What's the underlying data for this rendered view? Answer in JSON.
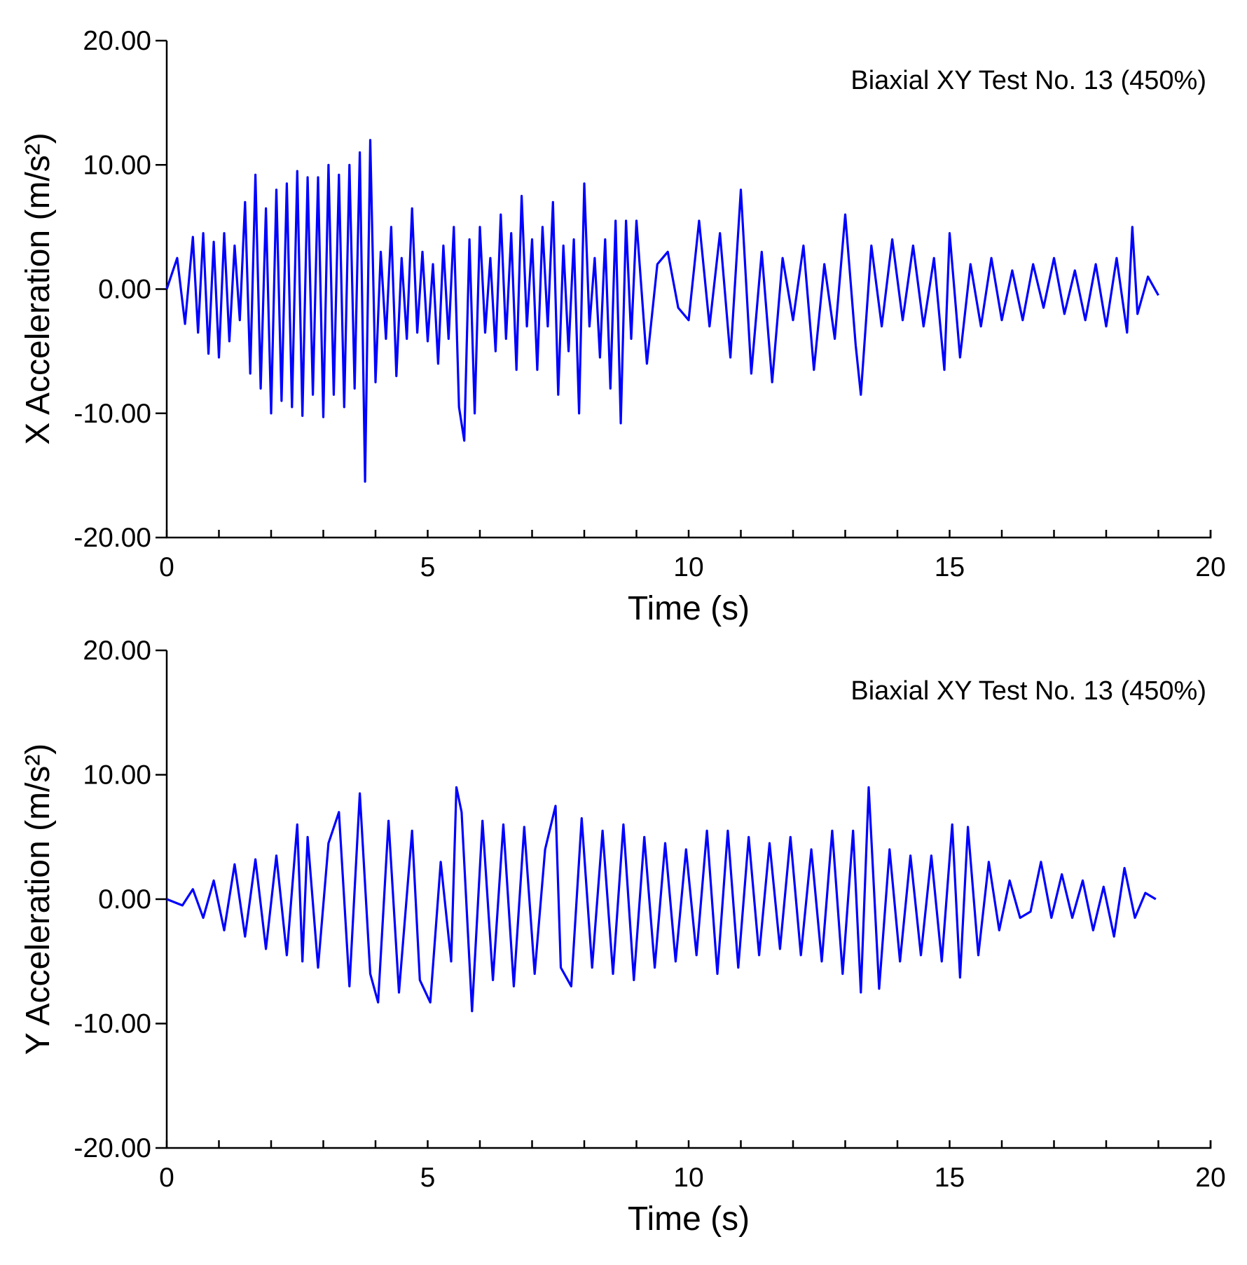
{
  "chart_data": [
    {
      "type": "line",
      "title": "",
      "annotation": "Biaxial XY Test No. 13 (450%)",
      "xlabel": "Time  (s)",
      "ylabel": "X Acceleration (m/s²)",
      "xlim": [
        0,
        20
      ],
      "ylim": [
        -20,
        20
      ],
      "x_ticks": [
        "0",
        "5",
        "10",
        "15",
        "20"
      ],
      "y_ticks": [
        "-20.00",
        "-10.00",
        "0.00",
        "10.00",
        "20.00"
      ],
      "grid": false,
      "legend": "none",
      "color": "#0000ff",
      "series": [
        {
          "x": [
            0,
            0.2,
            0.35,
            0.5,
            0.6,
            0.7,
            0.8,
            0.9,
            1.0,
            1.1,
            1.2,
            1.3,
            1.4,
            1.5,
            1.6,
            1.7,
            1.8,
            1.9,
            2.0,
            2.1,
            2.2,
            2.3,
            2.4,
            2.5,
            2.6,
            2.7,
            2.8,
            2.9,
            3.0,
            3.1,
            3.2,
            3.3,
            3.4,
            3.5,
            3.6,
            3.7,
            3.8,
            3.9,
            4.0,
            4.1,
            4.2,
            4.3,
            4.4,
            4.5,
            4.6,
            4.7,
            4.8,
            4.9,
            5.0,
            5.1,
            5.2,
            5.3,
            5.4,
            5.5,
            5.6,
            5.7,
            5.8,
            5.9,
            6.0,
            6.1,
            6.2,
            6.3,
            6.4,
            6.5,
            6.6,
            6.7,
            6.8,
            6.9,
            7.0,
            7.1,
            7.2,
            7.3,
            7.4,
            7.5,
            7.6,
            7.7,
            7.8,
            7.9,
            8.0,
            8.1,
            8.2,
            8.3,
            8.4,
            8.5,
            8.6,
            8.7,
            8.8,
            8.9,
            9.0,
            9.2,
            9.4,
            9.6,
            9.8,
            10.0,
            10.2,
            10.4,
            10.6,
            10.8,
            11.0,
            11.2,
            11.4,
            11.6,
            11.8,
            12.0,
            12.2,
            12.4,
            12.6,
            12.8,
            13.0,
            13.2,
            13.3,
            13.5,
            13.7,
            13.9,
            14.1,
            14.3,
            14.5,
            14.7,
            14.9,
            15.0,
            15.2,
            15.4,
            15.6,
            15.8,
            16.0,
            16.2,
            16.4,
            16.6,
            16.8,
            17.0,
            17.2,
            17.4,
            17.6,
            17.8,
            18.0,
            18.2,
            18.4,
            18.5,
            18.6,
            18.8,
            19.0
          ],
          "y": [
            0,
            2.5,
            -2.8,
            4.2,
            -3.5,
            4.5,
            -5.2,
            3.8,
            -5.5,
            4.5,
            -4.2,
            3.5,
            -2.5,
            7.0,
            -6.8,
            9.2,
            -8.0,
            6.5,
            -10.0,
            8.0,
            -9.0,
            8.5,
            -9.5,
            9.5,
            -10.2,
            9.0,
            -8.5,
            9.0,
            -10.3,
            10.0,
            -8.5,
            9.2,
            -9.5,
            10.0,
            -8.0,
            11.0,
            -15.5,
            12.0,
            -7.5,
            3.0,
            -4.0,
            5.0,
            -7.0,
            2.5,
            -4.0,
            6.5,
            -3.5,
            3.0,
            -4.2,
            2.0,
            -6.0,
            3.5,
            -4.0,
            5.0,
            -9.5,
            -12.2,
            4.0,
            -10.0,
            5.0,
            -3.5,
            2.5,
            -5.0,
            6.0,
            -4.0,
            4.5,
            -6.5,
            7.5,
            -3.0,
            4.0,
            -6.5,
            5.0,
            -3.0,
            7.0,
            -8.5,
            3.5,
            -5.0,
            4.0,
            -10.0,
            8.5,
            -3.0,
            2.5,
            -5.5,
            4.0,
            -8.0,
            5.5,
            -10.8,
            5.5,
            -4.0,
            5.5,
            -6.0,
            2.0,
            3.0,
            -1.5,
            -2.5,
            5.5,
            -3.0,
            4.5,
            -5.5,
            8.0,
            -6.8,
            3.0,
            -7.5,
            2.5,
            -2.5,
            3.5,
            -6.5,
            2.0,
            -4.0,
            6.0,
            -4.5,
            -8.5,
            3.5,
            -3.0,
            4.0,
            -2.5,
            3.5,
            -3.0,
            2.5,
            -6.5,
            4.5,
            -5.5,
            2.0,
            -3.0,
            2.5,
            -2.5,
            1.5,
            -2.5,
            2.0,
            -1.5,
            2.5,
            -2.0,
            1.5,
            -2.5,
            2.0,
            -3.0,
            2.5,
            -3.5,
            5.0,
            -2.0,
            1.0,
            -0.5
          ]
        }
      ]
    },
    {
      "type": "line",
      "title": "",
      "annotation": "Biaxial XY Test No. 13 (450%)",
      "xlabel": "Time  (s)",
      "ylabel": "Y Acceleration (m/s²)",
      "xlim": [
        0,
        20
      ],
      "ylim": [
        -20,
        20
      ],
      "x_ticks": [
        "0",
        "5",
        "10",
        "15",
        "20"
      ],
      "y_ticks": [
        "-20.00",
        "-10.00",
        "0.00",
        "10.00",
        "20.00"
      ],
      "grid": false,
      "legend": "none",
      "color": "#0000ff",
      "series": [
        {
          "x": [
            0,
            0.3,
            0.5,
            0.7,
            0.9,
            1.1,
            1.3,
            1.5,
            1.7,
            1.9,
            2.1,
            2.3,
            2.5,
            2.6,
            2.7,
            2.9,
            3.1,
            3.3,
            3.5,
            3.7,
            3.9,
            4.05,
            4.25,
            4.45,
            4.7,
            4.85,
            5.05,
            5.25,
            5.45,
            5.55,
            5.65,
            5.85,
            6.05,
            6.25,
            6.45,
            6.65,
            6.85,
            7.05,
            7.25,
            7.45,
            7.55,
            7.75,
            7.95,
            8.15,
            8.35,
            8.55,
            8.75,
            8.95,
            9.15,
            9.35,
            9.55,
            9.75,
            9.95,
            10.15,
            10.35,
            10.55,
            10.75,
            10.95,
            11.15,
            11.35,
            11.55,
            11.75,
            11.95,
            12.15,
            12.35,
            12.55,
            12.75,
            12.95,
            13.15,
            13.3,
            13.45,
            13.65,
            13.85,
            14.05,
            14.25,
            14.45,
            14.65,
            14.85,
            15.05,
            15.2,
            15.35,
            15.55,
            15.75,
            15.95,
            16.15,
            16.35,
            16.55,
            16.75,
            16.95,
            17.15,
            17.35,
            17.55,
            17.75,
            17.95,
            18.15,
            18.35,
            18.55,
            18.75,
            18.95
          ],
          "y": [
            0,
            -0.5,
            0.8,
            -1.5,
            1.5,
            -2.5,
            2.8,
            -3.0,
            3.2,
            -4.0,
            3.5,
            -4.5,
            6.0,
            -5.0,
            5.0,
            -5.5,
            4.5,
            7.0,
            -7.0,
            8.5,
            -6.0,
            -8.3,
            6.3,
            -7.5,
            5.5,
            -6.5,
            -8.3,
            3.0,
            -5.0,
            9.0,
            7.0,
            -9.0,
            6.3,
            -6.5,
            6.0,
            -7.0,
            5.8,
            -6.0,
            4.0,
            7.5,
            -5.5,
            -7.0,
            6.5,
            -5.5,
            5.5,
            -6.0,
            6.0,
            -6.5,
            5.0,
            -5.5,
            4.5,
            -5.0,
            4.0,
            -4.5,
            5.5,
            -6.0,
            5.5,
            -5.5,
            5.0,
            -4.5,
            4.5,
            -4.0,
            5.0,
            -4.5,
            4.0,
            -5.0,
            5.5,
            -6.0,
            5.5,
            -7.5,
            9.0,
            -7.2,
            4.0,
            -5.0,
            3.5,
            -4.5,
            3.5,
            -5.0,
            6.0,
            -6.3,
            5.8,
            -4.5,
            3.0,
            -2.5,
            1.5,
            -1.5,
            -1.0,
            3.0,
            -1.5,
            2.0,
            -1.5,
            1.5,
            -2.5,
            1.0,
            -3.0,
            2.5,
            -1.5,
            0.5,
            0.0
          ]
        }
      ]
    }
  ]
}
